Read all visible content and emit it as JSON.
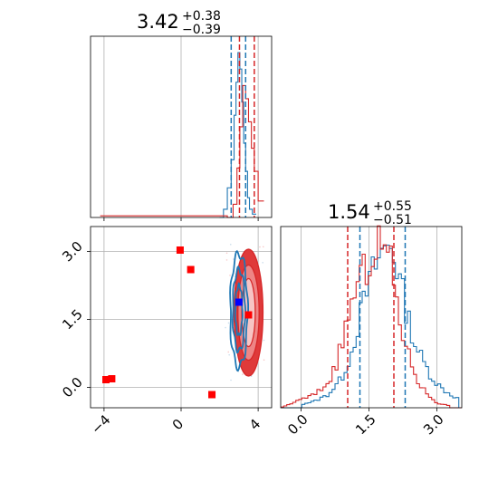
{
  "chart_data": [
    {
      "type": "line",
      "panel": "top-left marginal histogram",
      "title_value": "3.42",
      "title_plus": "+0.38",
      "title_minus": "−0.39",
      "xlim": [
        -4.7,
        4.7
      ],
      "grid": true,
      "series": [
        {
          "color": "#1f77b4",
          "x": [
            2.0,
            2.2,
            2.4,
            2.6,
            2.75,
            2.85,
            2.95,
            3.05,
            3.15,
            3.25,
            3.35,
            3.45,
            3.55,
            3.7,
            3.9
          ],
          "values": [
            0.0,
            0.05,
            0.18,
            0.35,
            0.62,
            0.82,
            1.0,
            0.9,
            0.7,
            0.45,
            0.28,
            0.12,
            0.05,
            0.02,
            0.0
          ]
        },
        {
          "color": "#d62728",
          "x": [
            -4.2,
            -3.8,
            2.4,
            2.7,
            2.9,
            3.05,
            3.2,
            3.35,
            3.5,
            3.65,
            3.8,
            4.0,
            4.3
          ],
          "values": [
            0.01,
            0.01,
            0.0,
            0.08,
            0.3,
            0.55,
            0.8,
            0.72,
            0.58,
            0.42,
            0.28,
            0.1,
            0.0
          ]
        }
      ],
      "vlines": [
        {
          "x": 2.6,
          "color": "#1f77b4"
        },
        {
          "x": 3.35,
          "color": "#1f77b4"
        },
        {
          "x": 3.03,
          "color": "#d62728"
        },
        {
          "x": 3.8,
          "color": "#d62728"
        }
      ]
    },
    {
      "type": "scatter",
      "panel": "bottom-left 2D contour",
      "xlim": [
        -4.7,
        4.7
      ],
      "ylim": [
        -0.45,
        3.55
      ],
      "x_ticks": [
        "−4",
        "0",
        "4"
      ],
      "x_tick_values": [
        -4,
        0,
        4
      ],
      "y_ticks": [
        "0.0",
        "1.5",
        "3.0"
      ],
      "y_tick_values": [
        0.0,
        1.5,
        3.0
      ],
      "grid": true,
      "contours": [
        {
          "color": "#1f77b4",
          "cx": 3.0,
          "cy": 1.7,
          "rx": [
            0.18,
            0.32,
            0.45
          ],
          "ry": [
            0.55,
            0.9,
            1.25
          ]
        },
        {
          "color": "#d62728",
          "cx": 3.5,
          "cy": 1.65,
          "rx": [
            0.35,
            0.55,
            0.75
          ],
          "ry": [
            0.75,
            1.05,
            1.4
          ]
        }
      ],
      "markers": [
        {
          "x": -0.05,
          "y": 3.03,
          "color": "#ff0000"
        },
        {
          "x": 0.5,
          "y": 2.6,
          "color": "#ff0000"
        },
        {
          "x": -3.9,
          "y": 0.17,
          "color": "#ff0000"
        },
        {
          "x": -3.6,
          "y": 0.19,
          "color": "#ff0000"
        },
        {
          "x": 1.6,
          "y": -0.16,
          "color": "#ff0000"
        },
        {
          "x": 3.5,
          "y": 1.6,
          "color": "#ff0000"
        },
        {
          "x": 3.0,
          "y": 1.88,
          "color": "#0000ff"
        }
      ]
    },
    {
      "type": "line",
      "panel": "bottom-right marginal histogram",
      "title_value": "1.54",
      "title_plus": "+0.55",
      "title_minus": "−0.51",
      "xlim": [
        -0.45,
        3.55
      ],
      "x_ticks": [
        "0.0",
        "1.5",
        "3.0"
      ],
      "x_tick_values": [
        0.0,
        1.5,
        3.0
      ],
      "grid": true,
      "series": [
        {
          "color": "#1f77b4",
          "x": [
            0.0,
            0.3,
            0.6,
            0.9,
            1.1,
            1.3,
            1.5,
            1.7,
            1.9,
            2.0,
            2.1,
            2.3,
            2.5,
            2.7,
            2.9,
            3.1,
            3.3,
            3.5
          ],
          "values": [
            0.02,
            0.04,
            0.08,
            0.18,
            0.32,
            0.55,
            0.75,
            0.9,
            0.98,
            1.0,
            0.88,
            0.62,
            0.4,
            0.28,
            0.18,
            0.12,
            0.08,
            0.05
          ]
        },
        {
          "color": "#d62728",
          "x": [
            -0.45,
            0.0,
            0.3,
            0.6,
            0.8,
            1.0,
            1.2,
            1.4,
            1.6,
            1.8,
            2.0,
            2.2,
            2.4,
            2.6,
            2.8,
            3.0,
            3.3
          ],
          "values": [
            0.0,
            0.05,
            0.08,
            0.15,
            0.28,
            0.5,
            0.72,
            0.82,
            0.95,
            1.0,
            0.85,
            0.5,
            0.3,
            0.15,
            0.08,
            0.03,
            0.01
          ]
        }
      ],
      "vlines": [
        {
          "x": 1.03,
          "color": "#d62728"
        },
        {
          "x": 1.3,
          "color": "#1f77b4"
        },
        {
          "x": 2.05,
          "color": "#d62728"
        },
        {
          "x": 2.3,
          "color": "#1f77b4"
        }
      ]
    }
  ]
}
